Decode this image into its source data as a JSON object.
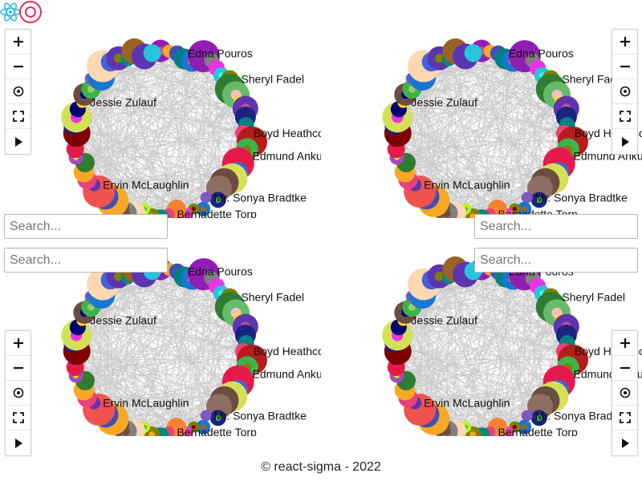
{
  "header": {
    "logo_icon": "react-sigma-logo-icon"
  },
  "node_labels": [
    "Edna Pouros",
    "Sheryl Fadel",
    "Jessie Zulauf",
    "Boyd Heathcote",
    "Edmund Ankunding",
    "Ervin McLaughlin",
    "Mr. Sonya Bradtke",
    "Bernadette Torp"
  ],
  "controls": {
    "zoom_in_icon": "plus-icon",
    "zoom_out_icon": "minus-icon",
    "reset_icon": "target-icon",
    "fullscreen_icon": "fullscreen-icon",
    "layout_icon": "play-icon"
  },
  "search": {
    "placeholder": "Search..."
  },
  "footer": {
    "text": "© react-sigma - 2022"
  },
  "colors": {
    "edge": "#c8c8c8",
    "control_border": "#d0d0d0"
  }
}
